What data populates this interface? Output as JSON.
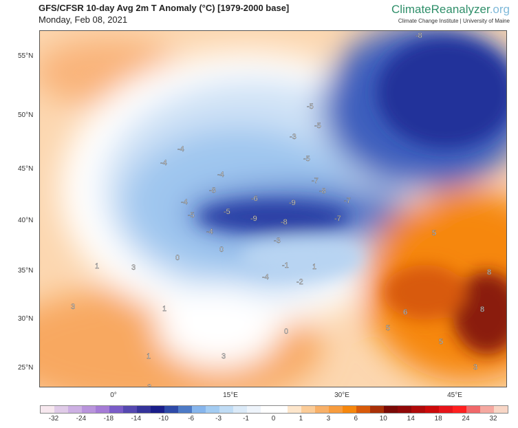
{
  "header": {
    "title": "GFS/CFSR 10-day Avg 2m T Anomaly (°C) [1979-2000 base]",
    "date": "Monday, Feb 08, 2021",
    "brand_main": "ClimateReanalyzer",
    "brand_tld": ".org",
    "brand_sub": "Climate Change Institute | University of Maine"
  },
  "map": {
    "lat_labels": [
      "55°N",
      "50°N",
      "45°N",
      "40°N",
      "35°N",
      "30°N",
      "25°N"
    ],
    "lon_labels": [
      "0°",
      "15°E",
      "30°E",
      "45°E"
    ],
    "contour_labels": [
      "-8",
      "-4",
      "-4",
      "-4",
      "-4",
      "-3",
      "-8",
      "-6",
      "-5",
      "-5",
      "-9",
      "-9",
      "-8",
      "-7",
      "-8",
      "-7",
      "-7",
      "-5",
      "-5",
      "-5",
      "-4",
      "-3",
      "0",
      "0",
      "-1",
      "-4",
      "-2",
      "1",
      "1",
      "3",
      "3",
      "1",
      "3",
      "1",
      "3",
      "6",
      "5",
      "5",
      "8",
      "8",
      "5",
      "3",
      "0"
    ]
  },
  "colorbar": {
    "labels": [
      "-32",
      "-24",
      "-18",
      "-14",
      "-10",
      "-6",
      "-3",
      "-1",
      "0",
      "1",
      "3",
      "6",
      "10",
      "14",
      "18",
      "24",
      "32"
    ],
    "colors": [
      "#f7e8ef",
      "#e0cbe8",
      "#cdb0e3",
      "#b994dc",
      "#a57bd6",
      "#7a5cc8",
      "#5548b0",
      "#35339a",
      "#1a1e8a",
      "#2e4aa8",
      "#4d7ac6",
      "#86b5ec",
      "#a3ccf2",
      "#c0dcf5",
      "#dbeaf8",
      "#eef4fb",
      "#ffffff",
      "#ffffff",
      "#fde6cc",
      "#fbcc98",
      "#f8b068",
      "#f79c3e",
      "#f6870d",
      "#d85a0a",
      "#a93008",
      "#7a0a06",
      "#900808",
      "#b00a0a",
      "#cc0a0a",
      "#e6141a",
      "#ff2020",
      "#f0686a",
      "#f5a8a0",
      "#f8d6c6"
    ]
  }
}
